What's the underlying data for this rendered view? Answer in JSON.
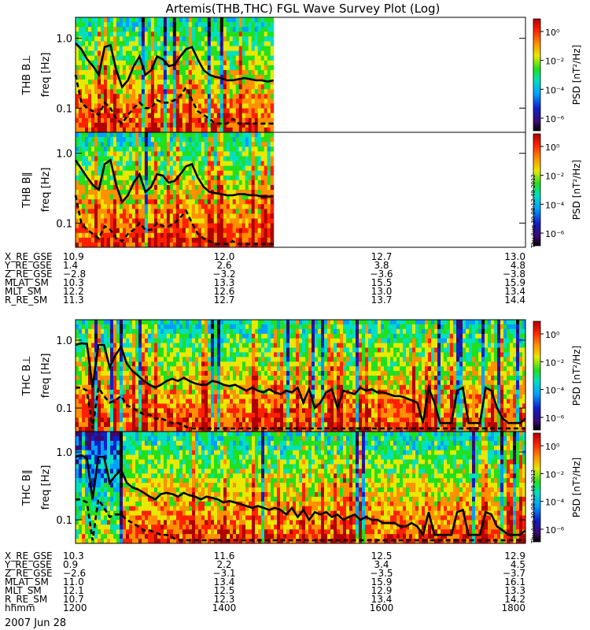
{
  "title": "Artemis(THB,THC) FGL Wave Survey Plot (Log)",
  "stamp": "Thu Aug 30 08:12:49 2012",
  "chart_data": [
    {
      "type": "heatmap",
      "panel": "thb-bperp",
      "ylabel": "THB B⊥",
      "yunit": "freq [Hz]",
      "yscale": "log",
      "ylim": [
        0.045,
        2.0
      ],
      "yticks": [
        "1.0",
        "0.1"
      ],
      "colorbar_label": "PSD [nT²/Hz]",
      "data_extent_fraction": 0.44,
      "lines": [
        {
          "name": "upper",
          "style": "solid",
          "y": [
            0.85,
            0.7,
            0.5,
            0.4,
            0.3,
            0.75,
            0.8,
            0.35,
            0.2,
            0.25,
            0.4,
            0.55,
            0.3,
            0.35,
            0.55,
            0.5,
            0.4,
            0.42,
            0.55,
            0.7,
            0.75,
            0.5,
            0.35,
            0.3,
            0.28,
            0.27,
            0.25,
            0.25,
            0.26,
            0.27,
            0.26,
            0.25,
            0.25,
            0.24,
            0.25
          ]
        },
        {
          "name": "lower",
          "style": "dashed",
          "y": [
            0.3,
            0.12,
            0.1,
            0.09,
            0.08,
            0.12,
            0.1,
            0.07,
            0.06,
            0.08,
            0.1,
            0.12,
            0.1,
            0.1,
            0.13,
            0.12,
            0.12,
            0.13,
            0.15,
            0.2,
            0.13,
            0.09,
            0.08,
            0.07,
            0.06,
            0.06,
            0.06,
            0.07,
            0.06,
            0.06,
            0.06,
            0.06,
            0.06,
            0.06,
            0.06
          ]
        }
      ]
    },
    {
      "type": "heatmap",
      "panel": "thb-bpar",
      "ylabel": "THB B∥",
      "yunit": "freq [Hz]",
      "yscale": "log",
      "ylim": [
        0.045,
        2.0
      ],
      "yticks": [
        "1.0",
        "0.1"
      ],
      "colorbar_label": "PSD [nT²/Hz]",
      "data_extent_fraction": 0.44,
      "lines": [
        {
          "name": "upper",
          "style": "solid",
          "y": [
            0.8,
            0.6,
            0.45,
            0.35,
            0.3,
            0.7,
            0.8,
            0.35,
            0.2,
            0.25,
            0.38,
            0.5,
            0.28,
            0.33,
            0.5,
            0.48,
            0.38,
            0.4,
            0.5,
            0.65,
            0.7,
            0.45,
            0.33,
            0.28,
            0.27,
            0.26,
            0.25,
            0.25,
            0.26,
            0.26,
            0.25,
            0.25,
            0.24,
            0.24,
            0.24
          ]
        },
        {
          "name": "lower",
          "style": "dashed",
          "y": [
            0.25,
            0.1,
            0.08,
            0.07,
            0.06,
            0.09,
            0.08,
            0.06,
            0.055,
            0.07,
            0.08,
            0.1,
            0.08,
            0.08,
            0.1,
            0.09,
            0.09,
            0.1,
            0.12,
            0.15,
            0.1,
            0.07,
            0.06,
            0.055,
            0.05,
            0.05,
            0.05,
            0.055,
            0.05,
            0.05,
            0.05,
            0.05,
            0.05,
            0.05,
            0.05
          ]
        }
      ]
    },
    {
      "type": "heatmap",
      "panel": "thc-bperp",
      "ylabel": "THC B⊥",
      "yunit": "freq [Hz]",
      "yscale": "log",
      "ylim": [
        0.045,
        2.0
      ],
      "yticks": [
        "1.0",
        "0.1"
      ],
      "colorbar_label": "PSD [nT²/Hz]",
      "data_extent_fraction": 1.0,
      "lines": [
        {
          "name": "upper",
          "style": "solid",
          "y": [
            0.85,
            0.9,
            0.88,
            0.2,
            0.85,
            0.85,
            0.4,
            0.6,
            0.8,
            0.45,
            0.35,
            0.3,
            0.25,
            0.22,
            0.2,
            0.22,
            0.25,
            0.27,
            0.25,
            0.28,
            0.25,
            0.23,
            0.22,
            0.22,
            0.25,
            0.24,
            0.22,
            0.21,
            0.22,
            0.2,
            0.18,
            0.2,
            0.18,
            0.17,
            0.19,
            0.17,
            0.16,
            0.18,
            0.17,
            0.2,
            0.12,
            0.19,
            0.1,
            0.12,
            0.17,
            0.19,
            0.1,
            0.18,
            0.17,
            0.16,
            0.2,
            0.18,
            0.19,
            0.17,
            0.17,
            0.16,
            0.15,
            0.15,
            0.14,
            0.13,
            0.12,
            0.06,
            0.2,
            0.12,
            0.06,
            0.06,
            0.06,
            0.18,
            0.2,
            0.06,
            0.06,
            0.06,
            0.2,
            0.18,
            0.1,
            0.07,
            0.06,
            0.06,
            0.06,
            0.07
          ]
        },
        {
          "name": "lower",
          "style": "dashed",
          "y": [
            0.2,
            0.2,
            0.18,
            0.05,
            0.2,
            0.15,
            0.12,
            0.13,
            0.15,
            0.11,
            0.1,
            0.09,
            0.08,
            0.08,
            0.07,
            0.07,
            0.065,
            0.06,
            0.06,
            0.055,
            0.05,
            0.05,
            0.05,
            0.05,
            0.05,
            0.05,
            0.05,
            0.05,
            0.05,
            0.05,
            0.05,
            0.05,
            0.05,
            0.05,
            0.05,
            0.05,
            0.05,
            0.05,
            0.05,
            0.05,
            0.05,
            0.05,
            0.05,
            0.05,
            0.05,
            0.05,
            0.05,
            0.05,
            0.05,
            0.05,
            0.05,
            0.05,
            0.05,
            0.05,
            0.05,
            0.05,
            0.05,
            0.05,
            0.05,
            0.05,
            0.05,
            0.05,
            0.05,
            0.05,
            0.05,
            0.05,
            0.05,
            0.05,
            0.05,
            0.05,
            0.05,
            0.05,
            0.05,
            0.05,
            0.05,
            0.05,
            0.05,
            0.05,
            0.05,
            0.05
          ]
        }
      ]
    },
    {
      "type": "heatmap",
      "panel": "thc-bpar",
      "ylabel": "THC B∥",
      "yunit": "freq [Hz]",
      "yscale": "log",
      "ylim": [
        0.045,
        2.0
      ],
      "yticks": [
        "1.0",
        "0.1"
      ],
      "colorbar_label": "PSD [nT²/Hz]",
      "data_extent_fraction": 1.0,
      "lines": [
        {
          "name": "upper",
          "style": "solid",
          "y": [
            0.85,
            0.9,
            0.8,
            0.2,
            0.85,
            0.85,
            0.35,
            0.45,
            0.55,
            0.35,
            0.3,
            0.28,
            0.25,
            0.22,
            0.2,
            0.24,
            0.25,
            0.24,
            0.22,
            0.25,
            0.23,
            0.22,
            0.2,
            0.22,
            0.21,
            0.2,
            0.18,
            0.19,
            0.18,
            0.17,
            0.16,
            0.15,
            0.16,
            0.15,
            0.14,
            0.15,
            0.14,
            0.12,
            0.15,
            0.11,
            0.14,
            0.1,
            0.13,
            0.12,
            0.13,
            0.11,
            0.12,
            0.1,
            0.11,
            0.12,
            0.1,
            0.11,
            0.1,
            0.1,
            0.09,
            0.09,
            0.09,
            0.08,
            0.08,
            0.09,
            0.08,
            0.06,
            0.13,
            0.06,
            0.06,
            0.06,
            0.06,
            0.13,
            0.14,
            0.06,
            0.06,
            0.06,
            0.13,
            0.12,
            0.08,
            0.07,
            0.06,
            0.06,
            0.06,
            0.07
          ]
        },
        {
          "name": "lower",
          "style": "dashed",
          "y": [
            0.2,
            0.2,
            0.18,
            0.05,
            0.2,
            0.15,
            0.11,
            0.12,
            0.12,
            0.1,
            0.09,
            0.08,
            0.07,
            0.07,
            0.065,
            0.06,
            0.06,
            0.055,
            0.05,
            0.05,
            0.05,
            0.05,
            0.05,
            0.05,
            0.05,
            0.05,
            0.05,
            0.05,
            0.05,
            0.05,
            0.05,
            0.05,
            0.05,
            0.05,
            0.05,
            0.05,
            0.05,
            0.05,
            0.05,
            0.05,
            0.05,
            0.05,
            0.05,
            0.05,
            0.05,
            0.05,
            0.05,
            0.05,
            0.05,
            0.05,
            0.05,
            0.05,
            0.05,
            0.05,
            0.05,
            0.05,
            0.05,
            0.05,
            0.05,
            0.05,
            0.05,
            0.05,
            0.05,
            0.05,
            0.05,
            0.05,
            0.05,
            0.05,
            0.05,
            0.05,
            0.05,
            0.05,
            0.05,
            0.05,
            0.05,
            0.05,
            0.05,
            0.05,
            0.05,
            0.05
          ]
        }
      ]
    }
  ],
  "colorbar": {
    "stops": [
      "#000000",
      "#3b0a6e",
      "#1020c8",
      "#00a0ff",
      "#00e0c0",
      "#20e020",
      "#e8e800",
      "#ff9000",
      "#ff2000",
      "#b00000"
    ],
    "ticks": [
      "10⁰",
      "10⁻²",
      "10⁻⁴",
      "10⁻⁶"
    ]
  },
  "orbit_top": {
    "rows": [
      {
        "label": "X_RE_GSE",
        "values": [
          "10.9",
          "12.0",
          "12.7",
          "13.0"
        ]
      },
      {
        "label": "Y_RE_GSE",
        "values": [
          "1.4",
          "2.6",
          "3.8",
          "4.8"
        ]
      },
      {
        "label": "Z_RE_GSE",
        "values": [
          "−2.8",
          "−3.2",
          "−3.6",
          "−3.8"
        ]
      },
      {
        "label": "MLAT_SM",
        "values": [
          "10.3",
          "13.3",
          "15.5",
          "15.9"
        ]
      },
      {
        "label": "MLT_SM",
        "values": [
          "12.2",
          "12.6",
          "13.0",
          "13.4"
        ]
      },
      {
        "label": "R_RE_SM",
        "values": [
          "11.3",
          "12.7",
          "13.7",
          "14.4"
        ]
      }
    ]
  },
  "orbit_bottom": {
    "rows": [
      {
        "label": "X_RE_GSE",
        "values": [
          "10.3",
          "11.6",
          "12.5",
          "12.9"
        ]
      },
      {
        "label": "Y_RE_GSE",
        "values": [
          "0.9",
          "2.2",
          "3.4",
          "4.5"
        ]
      },
      {
        "label": "Z_RE_GSE",
        "values": [
          "−2.6",
          "−3.1",
          "−3.5",
          "−3.7"
        ]
      },
      {
        "label": "MLAT_SM",
        "values": [
          "11.0",
          "13.4",
          "15.9",
          "16.1"
        ]
      },
      {
        "label": "MLT_SM",
        "values": [
          "12.1",
          "12.5",
          "12.9",
          "13.3"
        ]
      },
      {
        "label": "R_RE_SM",
        "values": [
          "10.7",
          "12.3",
          "13.4",
          "14.2"
        ]
      },
      {
        "label": "hhmm",
        "values": [
          "1200",
          "1400",
          "1600",
          "1800"
        ]
      }
    ],
    "date": "2007 Jun 28"
  }
}
